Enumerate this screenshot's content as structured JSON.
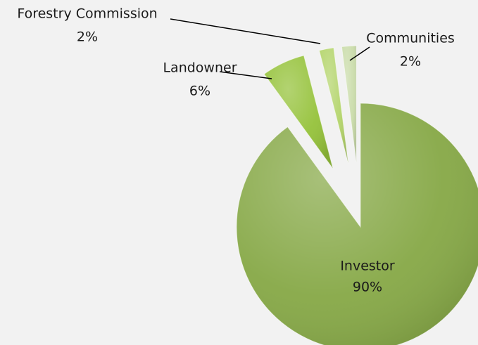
{
  "chart_data": {
    "type": "pie",
    "categories": [
      "Investor",
      "Landowner",
      "Forestry Commission",
      "Communities"
    ],
    "values": [
      90,
      6,
      2,
      2
    ],
    "value_labels": [
      "90%",
      "6%",
      "2%",
      "2%"
    ],
    "colors": [
      "#86a846",
      "#95c23a",
      "#b3d46a",
      "#cadcaa"
    ]
  }
}
